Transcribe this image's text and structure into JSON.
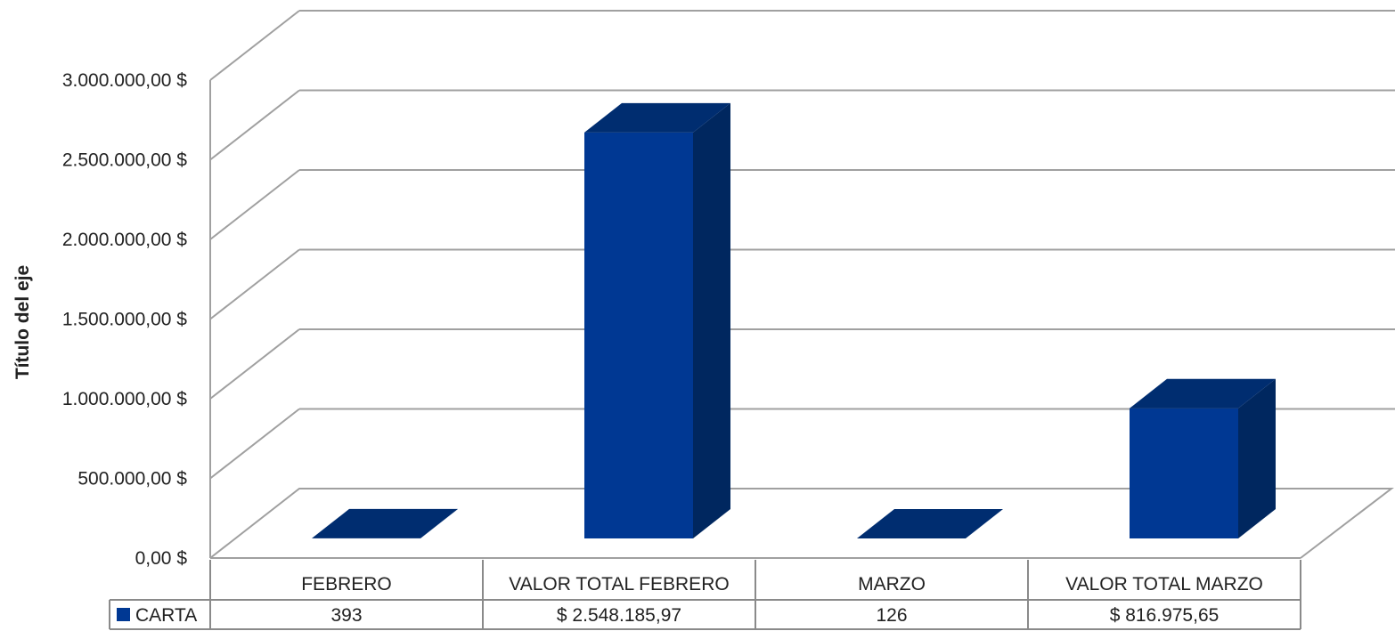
{
  "chart_data": {
    "type": "bar",
    "style": "3d-column",
    "ylabel": "Título del eje",
    "ylim": [
      0,
      3000000
    ],
    "yticks": [
      0,
      500000,
      1000000,
      1500000,
      2000000,
      2500000,
      3000000
    ],
    "ytick_labels": [
      "0,00 $",
      "500.000,00 $",
      "1.000.000,00 $",
      "1.500.000,00 $",
      "2.000.000,00 $",
      "2.500.000,00 $",
      "3.000.000,00 $"
    ],
    "categories": [
      "FEBRERO",
      "VALOR TOTAL FEBRERO",
      "MARZO",
      "VALOR TOTAL MARZO"
    ],
    "series": [
      {
        "name": "CARTA",
        "values": [
          393,
          2548185.97,
          126,
          816975.65
        ],
        "value_labels": [
          "393",
          "$ 2.548.185,97",
          "126",
          "$ 816.975,65"
        ],
        "color": "#003893"
      }
    ],
    "grid": true,
    "legend": "data-table",
    "colors": {
      "bar_front": "#003893",
      "bar_side": "#00275f",
      "bar_top": "#002d70",
      "grid": "#a0a0a0",
      "text": "#222222"
    }
  }
}
